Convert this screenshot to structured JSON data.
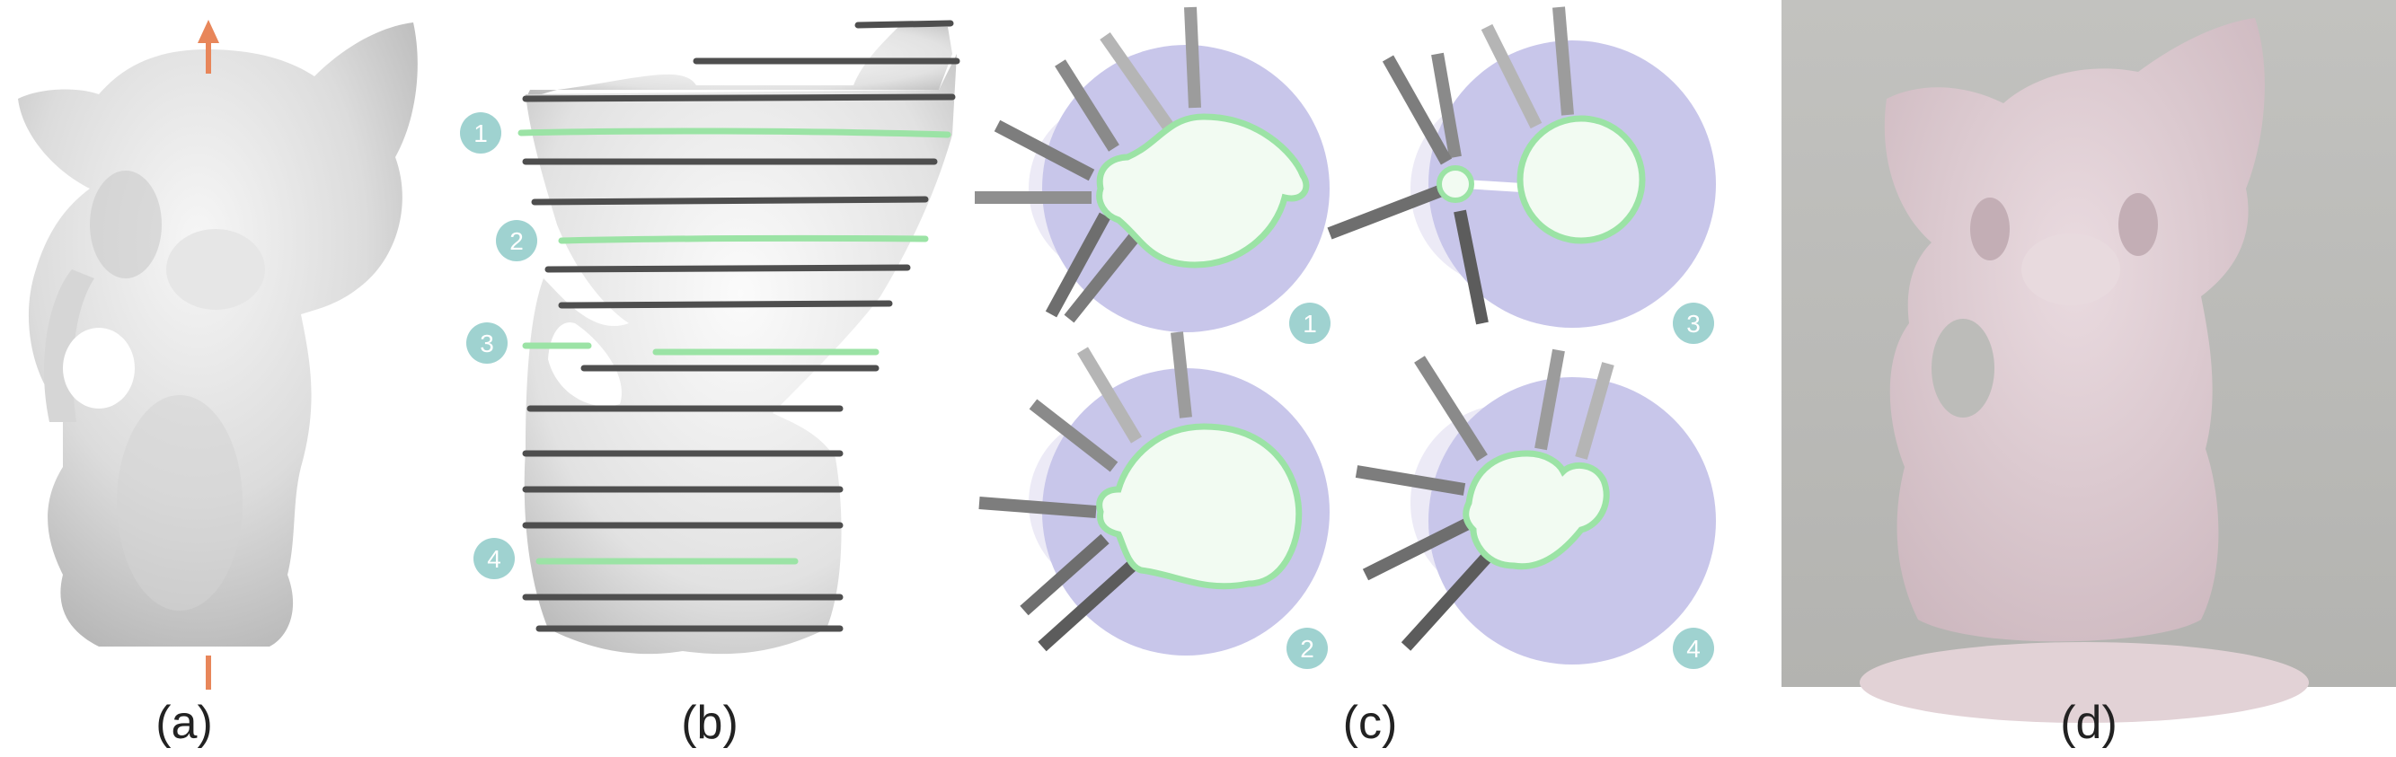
{
  "figure": {
    "captions": {
      "a": "(a)",
      "b": "(b)",
      "c": "(c)",
      "d": "(d)"
    },
    "slice_labels": [
      "1",
      "2",
      "3",
      "4"
    ],
    "colors": {
      "arrow": "#e8865a",
      "badge": "#9fd2d0",
      "slice_highlight": "#9be3a5",
      "slice_dark": "#4e4e4e",
      "disk": "#c8c6ea",
      "disk_light": "#eceaf6",
      "region_fill": "#f2fbf2",
      "photo_bg": "#bfbfbc",
      "photo_cat": "#dcc9cf"
    }
  }
}
